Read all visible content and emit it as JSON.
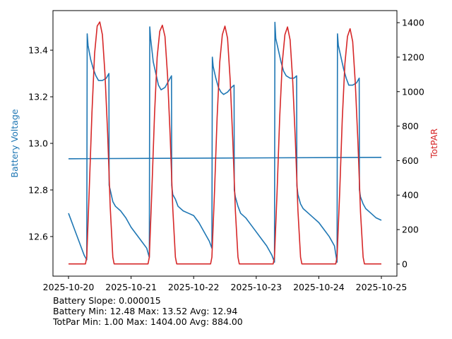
{
  "chart_data": {
    "type": "line",
    "x_ticks": [
      "2025-10-20",
      "2025-10-21",
      "2025-10-22",
      "2025-10-23",
      "2025-10-24",
      "2025-10-25"
    ],
    "xlim": [
      "2025-10-20",
      "2025-10-25"
    ],
    "left_axis": {
      "label": "Battery Voltage",
      "color": "#1f77b4",
      "ticks": [
        "12.6",
        "12.8",
        "13.0",
        "13.2",
        "13.4"
      ],
      "ylim": [
        12.43,
        13.57
      ]
    },
    "right_axis": {
      "label": "TotPAR",
      "color": "#d62728",
      "ticks": [
        "0",
        "200",
        "400",
        "600",
        "800",
        "1000",
        "1200",
        "1400"
      ],
      "ylim": [
        -70,
        1470
      ]
    },
    "series": [
      {
        "axis": "left",
        "color": "#1f77b4",
        "x": [
          "2025-10-20 00:00",
          "2025-10-20 01:00",
          "2025-10-20 02:00",
          "2025-10-20 03:00",
          "2025-10-20 04:00",
          "2025-10-20 05:00",
          "2025-10-20 06:00",
          "2025-10-20 07:00",
          "2025-10-20 07:10",
          "2025-10-20 07:30",
          "2025-10-20 08:30",
          "2025-10-20 09:30",
          "2025-10-20 10:30",
          "2025-10-20 11:30",
          "2025-10-20 13:00",
          "2025-10-20 14:30",
          "2025-10-20 15:30",
          "2025-10-20 15:35",
          "2025-10-20 16:00",
          "2025-10-20 17:00",
          "2025-10-20 18:00",
          "2025-10-20 20:00",
          "2025-10-20 22:00",
          "2025-10-21 00:00",
          "2025-10-21 02:00",
          "2025-10-21 04:00",
          "2025-10-21 06:00",
          "2025-10-21 07:00",
          "2025-10-21 07:10",
          "2025-10-21 07:30",
          "2025-10-21 08:30",
          "2025-10-21 09:30",
          "2025-10-21 10:30",
          "2025-10-21 11:30",
          "2025-10-21 13:00",
          "2025-10-21 14:30",
          "2025-10-21 15:30",
          "2025-10-21 15:35",
          "2025-10-21 16:00",
          "2025-10-21 17:00",
          "2025-10-21 18:00",
          "2025-10-21 20:00",
          "2025-10-21 22:00",
          "2025-10-22 00:00",
          "2025-10-22 02:00",
          "2025-10-22 04:00",
          "2025-10-22 06:00",
          "2025-10-22 07:00",
          "2025-10-22 07:10",
          "2025-10-22 07:30",
          "2025-10-22 08:30",
          "2025-10-22 09:30",
          "2025-10-22 10:30",
          "2025-10-22 11:30",
          "2025-10-22 13:00",
          "2025-10-22 14:30",
          "2025-10-22 15:30",
          "2025-10-22 15:35",
          "2025-10-22 16:00",
          "2025-10-22 17:00",
          "2025-10-22 18:00",
          "2025-10-22 20:00",
          "2025-10-22 22:00",
          "2025-10-23 00:00",
          "2025-10-23 02:00",
          "2025-10-23 04:00",
          "2025-10-23 06:00",
          "2025-10-23 07:00",
          "2025-10-23 07:10",
          "2025-10-23 07:30",
          "2025-10-23 08:30",
          "2025-10-23 09:30",
          "2025-10-23 10:30",
          "2025-10-23 11:30",
          "2025-10-23 13:00",
          "2025-10-23 14:30",
          "2025-10-23 15:30",
          "2025-10-23 15:35",
          "2025-10-23 16:00",
          "2025-10-23 17:00",
          "2025-10-23 18:00",
          "2025-10-23 20:00",
          "2025-10-23 22:00",
          "2025-10-24 00:00",
          "2025-10-24 02:00",
          "2025-10-24 04:00",
          "2025-10-24 06:00",
          "2025-10-24 07:00",
          "2025-10-24 07:10",
          "2025-10-24 07:30",
          "2025-10-24 08:30",
          "2025-10-24 09:30",
          "2025-10-24 10:30",
          "2025-10-24 11:30",
          "2025-10-24 13:00",
          "2025-10-24 14:30",
          "2025-10-24 15:30",
          "2025-10-24 15:35",
          "2025-10-24 16:00",
          "2025-10-24 17:00",
          "2025-10-24 18:00",
          "2025-10-24 20:00",
          "2025-10-24 22:00",
          "2025-10-25 00:00"
        ],
        "values": [
          12.7,
          12.67,
          12.64,
          12.61,
          12.58,
          12.55,
          12.52,
          12.5,
          13.47,
          13.42,
          13.36,
          13.32,
          13.29,
          13.27,
          13.27,
          13.28,
          13.3,
          12.82,
          12.8,
          12.75,
          12.73,
          12.71,
          12.68,
          12.64,
          12.61,
          12.58,
          12.55,
          12.51,
          13.5,
          13.45,
          13.35,
          13.3,
          13.25,
          13.23,
          13.24,
          13.27,
          13.29,
          12.82,
          12.78,
          12.76,
          12.73,
          12.71,
          12.7,
          12.69,
          12.66,
          12.62,
          12.58,
          12.55,
          13.37,
          13.33,
          13.28,
          13.24,
          13.22,
          13.21,
          13.22,
          13.24,
          13.25,
          12.8,
          12.77,
          12.73,
          12.7,
          12.68,
          12.65,
          12.62,
          12.59,
          12.56,
          12.52,
          12.49,
          13.52,
          13.45,
          13.4,
          13.35,
          13.31,
          13.29,
          13.28,
          13.28,
          13.29,
          12.82,
          12.78,
          12.74,
          12.72,
          12.7,
          12.68,
          12.66,
          12.63,
          12.6,
          12.56,
          12.49,
          13.47,
          13.42,
          13.37,
          13.32,
          13.28,
          13.25,
          13.25,
          13.26,
          13.28,
          12.8,
          12.77,
          12.74,
          12.72,
          12.7,
          12.68,
          12.67
        ]
      },
      {
        "axis": "left",
        "color": "#1f77b4",
        "x": [
          "2025-10-20 00:00",
          "2025-10-25 00:00"
        ],
        "values": [
          12.934,
          12.94
        ]
      },
      {
        "axis": "right",
        "color": "#d62728",
        "x": [
          "2025-10-20 00:00",
          "2025-10-20 06:30",
          "2025-10-20 07:00",
          "2025-10-20 08:00",
          "2025-10-20 09:00",
          "2025-10-20 10:00",
          "2025-10-20 11:00",
          "2025-10-20 12:00",
          "2025-10-20 13:00",
          "2025-10-20 14:00",
          "2025-10-20 15:00",
          "2025-10-20 16:00",
          "2025-10-20 17:00",
          "2025-10-20 17:30",
          "2025-10-21 06:30",
          "2025-10-21 07:00",
          "2025-10-21 08:00",
          "2025-10-21 09:00",
          "2025-10-21 10:00",
          "2025-10-21 11:00",
          "2025-10-21 12:00",
          "2025-10-21 13:00",
          "2025-10-21 14:00",
          "2025-10-21 15:00",
          "2025-10-21 16:00",
          "2025-10-21 17:00",
          "2025-10-21 17:30",
          "2025-10-22 06:30",
          "2025-10-22 07:00",
          "2025-10-22 08:00",
          "2025-10-22 09:00",
          "2025-10-22 10:00",
          "2025-10-22 11:00",
          "2025-10-22 12:00",
          "2025-10-22 13:00",
          "2025-10-22 14:00",
          "2025-10-22 15:00",
          "2025-10-22 16:00",
          "2025-10-22 17:00",
          "2025-10-22 17:30",
          "2025-10-23 06:30",
          "2025-10-23 07:00",
          "2025-10-23 08:00",
          "2025-10-23 09:00",
          "2025-10-23 10:00",
          "2025-10-23 11:00",
          "2025-10-23 12:00",
          "2025-10-23 13:00",
          "2025-10-23 14:00",
          "2025-10-23 15:00",
          "2025-10-23 16:00",
          "2025-10-23 17:00",
          "2025-10-23 17:30",
          "2025-10-24 06:30",
          "2025-10-24 07:00",
          "2025-10-24 08:00",
          "2025-10-24 09:00",
          "2025-10-24 10:00",
          "2025-10-24 11:00",
          "2025-10-24 12:00",
          "2025-10-24 13:00",
          "2025-10-24 14:00",
          "2025-10-24 15:00",
          "2025-10-24 16:00",
          "2025-10-24 17:00",
          "2025-10-24 17:30",
          "2025-10-25 00:00"
        ],
        "values": [
          1,
          1,
          40,
          450,
          880,
          1220,
          1380,
          1404,
          1330,
          1100,
          760,
          330,
          40,
          1,
          1,
          40,
          440,
          870,
          1200,
          1350,
          1385,
          1320,
          1090,
          740,
          320,
          40,
          1,
          1,
          40,
          420,
          850,
          1170,
          1330,
          1380,
          1310,
          1070,
          720,
          310,
          40,
          1,
          1,
          40,
          420,
          850,
          1170,
          1330,
          1375,
          1300,
          1060,
          720,
          310,
          40,
          1,
          1,
          40,
          410,
          840,
          1160,
          1320,
          1365,
          1290,
          1050,
          710,
          300,
          40,
          1,
          1
        ]
      }
    ]
  },
  "stats": {
    "line1": "Battery Slope: 0.000015",
    "line2": "Battery Min: 12.48 Max: 13.52 Avg: 12.94",
    "line3": "TotPar Min: 1.00 Max: 1404.00 Avg: 884.00"
  }
}
